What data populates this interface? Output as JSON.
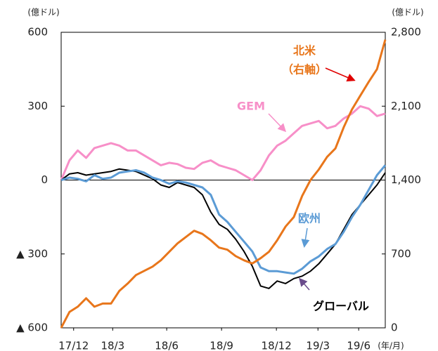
{
  "chart_data": {
    "type": "line",
    "y_unit_label": "(億ドル)",
    "y2_unit_label": "(億ドル)",
    "x_unit_label": "(年/月)",
    "x": [
      0,
      1,
      2,
      3,
      4,
      5,
      6,
      7,
      8,
      9,
      10,
      11,
      12,
      13,
      14,
      15,
      16,
      17,
      18,
      19,
      20,
      21,
      22,
      23,
      24,
      25,
      26,
      27,
      28,
      29,
      30,
      31,
      32,
      33,
      34,
      35,
      36,
      37,
      38,
      39
    ],
    "xlim": [
      0,
      39
    ],
    "xticks": [
      {
        "value": 1.5,
        "label": "17/12"
      },
      {
        "value": 6.2,
        "label": "18/3"
      },
      {
        "value": 12.7,
        "label": "18/6"
      },
      {
        "value": 19.3,
        "label": "18/9"
      },
      {
        "value": 25.9,
        "label": "18/12"
      },
      {
        "value": 30.9,
        "label": "19/3"
      },
      {
        "value": 35.8,
        "label": "19/6"
      }
    ],
    "ylim": [
      -600,
      600
    ],
    "yticks": [
      {
        "value": -600,
        "label": "▲ 600"
      },
      {
        "value": -300,
        "label": "▲ 300"
      },
      0,
      300,
      600
    ],
    "y2lim": [
      0,
      2800
    ],
    "y2ticks": [
      0,
      700,
      {
        "value": 1400,
        "label": "1,400"
      },
      {
        "value": 2100,
        "label": "2,100"
      },
      {
        "value": 2800,
        "label": "2,800"
      }
    ],
    "series": [
      {
        "name": "GEM",
        "color": "#f78fc8",
        "values": [
          0,
          80,
          120,
          90,
          130,
          140,
          150,
          140,
          120,
          120,
          100,
          80,
          60,
          70,
          65,
          50,
          45,
          70,
          80,
          60,
          50,
          40,
          20,
          0,
          40,
          100,
          140,
          160,
          190,
          220,
          230,
          240,
          210,
          220,
          250,
          270,
          300,
          290,
          260,
          270
        ]
      },
      {
        "name": "グローバル",
        "color": "#000000",
        "values": [
          0,
          25,
          30,
          20,
          25,
          30,
          35,
          45,
          40,
          35,
          20,
          5,
          -20,
          -30,
          -10,
          -20,
          -30,
          -60,
          -130,
          -180,
          -200,
          -240,
          -290,
          -350,
          -430,
          -440,
          -410,
          -420,
          -400,
          -390,
          -370,
          -340,
          -300,
          -260,
          -200,
          -140,
          -100,
          -60,
          -20,
          30
        ]
      },
      {
        "name": "欧州",
        "color": "#5b9bd5",
        "values": [
          0,
          10,
          5,
          -5,
          20,
          5,
          10,
          30,
          35,
          40,
          30,
          10,
          0,
          -15,
          -5,
          -10,
          -20,
          -30,
          -60,
          -140,
          -170,
          -210,
          -250,
          -290,
          -355,
          -370,
          -370,
          -375,
          -380,
          -360,
          -330,
          -310,
          -280,
          -260,
          -210,
          -150,
          -100,
          -40,
          20,
          60
        ]
      },
      {
        "name": "北米",
        "note": "（右軸）",
        "color": "#e8761b",
        "axis": "y2",
        "values": [
          0,
          150,
          200,
          280,
          200,
          230,
          230,
          350,
          420,
          500,
          540,
          580,
          640,
          720,
          800,
          860,
          920,
          890,
          830,
          760,
          740,
          680,
          640,
          610,
          660,
          720,
          830,
          960,
          1050,
          1250,
          1400,
          1500,
          1620,
          1700,
          1900,
          2070,
          2200,
          2330,
          2450,
          2730
        ]
      }
    ]
  }
}
